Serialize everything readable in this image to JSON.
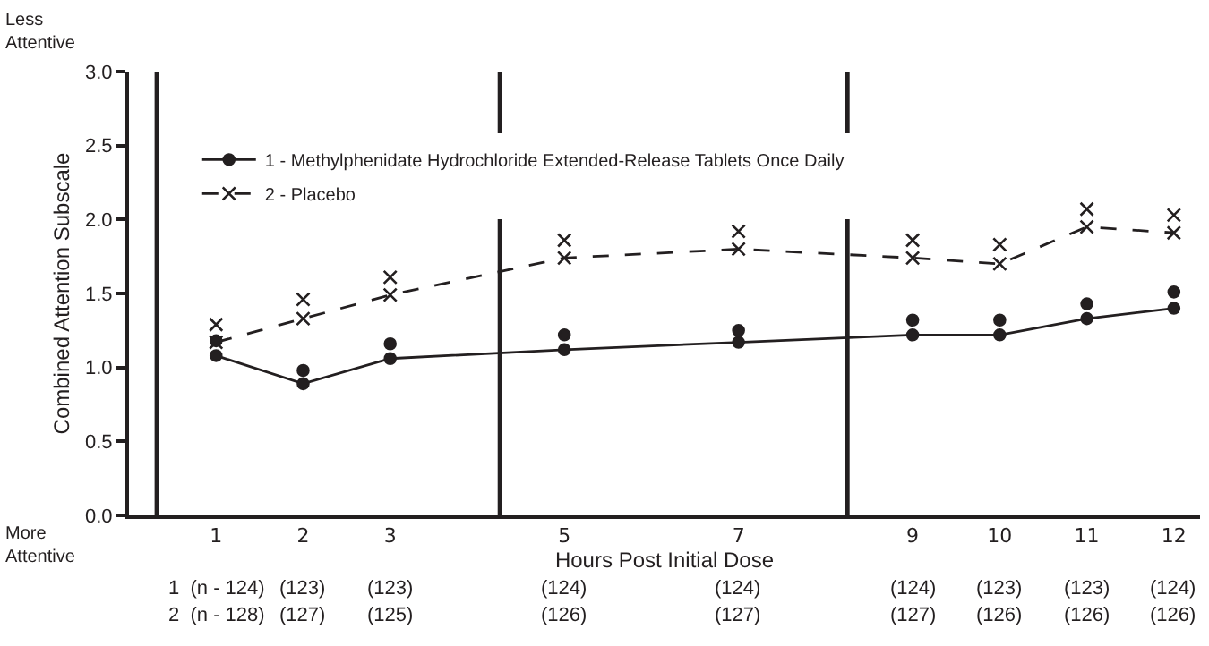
{
  "chart_data": {
    "type": "line",
    "xlabel": "Hours Post Initial Dose",
    "ylabel": "Combined Attention Subscale",
    "x": [
      1,
      2,
      3,
      5,
      7,
      9,
      10,
      11,
      12
    ],
    "xlim": [
      0,
      12.3
    ],
    "xticks": [
      1,
      2,
      3,
      5,
      7,
      9,
      10,
      11,
      12
    ],
    "ylim": [
      0,
      3
    ],
    "yticks": [
      {
        "value": 0,
        "label": "0.0"
      },
      {
        "value": 0.5,
        "label": "0.5"
      },
      {
        "value": 1,
        "label": "1.0"
      },
      {
        "value": 1.5,
        "label": "1.5"
      },
      {
        "value": 2,
        "label": "2.0"
      },
      {
        "value": 2.5,
        "label": "2.5"
      },
      {
        "value": 3,
        "label": "3.0"
      }
    ],
    "series": [
      {
        "name": "1 - Methylphenidate Hydrochloride Extended-Release Tablets Once Daily",
        "color": "#231f20",
        "marker": "circle",
        "line_style": "solid",
        "values": [
          1.08,
          0.89,
          1.06,
          1.12,
          1.17,
          1.22,
          1.22,
          1.33,
          1.4
        ]
      },
      {
        "color": "#231f20",
        "type": "scatter",
        "marker": "circle",
        "values": [
          1.18,
          0.98,
          1.16,
          1.22,
          1.25,
          1.32,
          1.32,
          1.43,
          1.51
        ]
      },
      {
        "name": "2 - Placebo",
        "color": "#231f20",
        "marker": "cross",
        "line_style": "dashed",
        "values": [
          1.17,
          1.33,
          1.49,
          1.74,
          1.8,
          1.74,
          1.7,
          1.95,
          1.91
        ]
      },
      {
        "color": "#231f20",
        "type": "scatter",
        "marker": "cross",
        "values": [
          1.29,
          1.46,
          1.61,
          1.86,
          1.92,
          1.86,
          1.83,
          2.07,
          2.03
        ]
      }
    ],
    "ref_lines": [
      {
        "axis": "x",
        "value": 0.32,
        "color": "#231f20"
      },
      {
        "axis": "x",
        "value": 4.26,
        "color": "#231f20"
      },
      {
        "axis": "x",
        "value": 8.25,
        "color": "#231f20"
      }
    ],
    "annotations": [
      "Less Attentive",
      "More Attentive",
      "1  (n - 124)",
      "(123)",
      "(123)",
      "(124)",
      "(124)",
      "(124)",
      "(123)",
      "(123)",
      "(124)",
      "2  (n - 128)",
      "(127)",
      "(125)",
      "(126)",
      "(127)",
      "(127)",
      "(126)",
      "(126)",
      "(126)"
    ],
    "legend": "top left",
    "grid": false
  }
}
